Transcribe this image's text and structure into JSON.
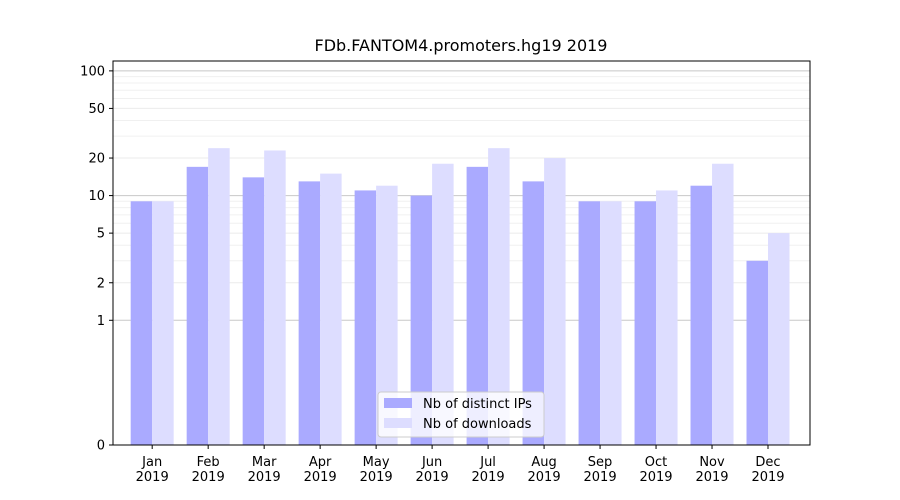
{
  "chart_data": {
    "type": "bar",
    "title": "FDb.FANTOM4.promoters.hg19 2019",
    "xlabel": "",
    "ylabel": "",
    "y_scale": "symlog",
    "ylim": [
      0,
      120
    ],
    "yticks": [
      0,
      1,
      2,
      5,
      10,
      20,
      50,
      100
    ],
    "categories": [
      "Jan\n2019",
      "Feb\n2019",
      "Mar\n2019",
      "Apr\n2019",
      "May\n2019",
      "Jun\n2019",
      "Jul\n2019",
      "Aug\n2019",
      "Sep\n2019",
      "Oct\n2019",
      "Nov\n2019",
      "Dec\n2019"
    ],
    "series": [
      {
        "name": "Nb of distinct IPs",
        "color": "#aaaaff",
        "values": [
          9,
          17,
          14,
          13,
          11,
          10,
          17,
          13,
          9,
          9,
          12,
          3
        ]
      },
      {
        "name": "Nb of downloads",
        "color": "#ddddff",
        "values": [
          9,
          24,
          23,
          15,
          12,
          18,
          24,
          20,
          9,
          11,
          18,
          5
        ]
      }
    ],
    "grid": true,
    "legend_position": "bottom-center"
  }
}
